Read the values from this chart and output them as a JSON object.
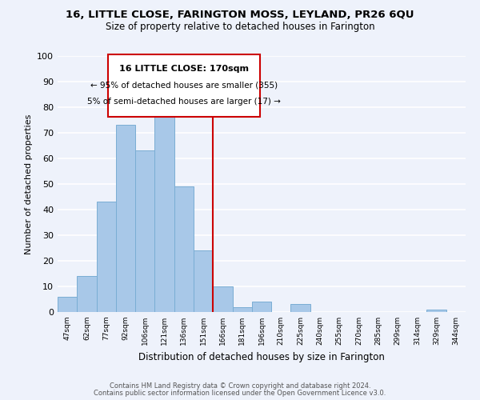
{
  "title": "16, LITTLE CLOSE, FARINGTON MOSS, LEYLAND, PR26 6QU",
  "subtitle": "Size of property relative to detached houses in Farington",
  "xlabel": "Distribution of detached houses by size in Farington",
  "ylabel": "Number of detached properties",
  "bar_color": "#a8c8e8",
  "bar_edge_color": "#7aadd4",
  "background_color": "#eef2fb",
  "grid_color": "#ffffff",
  "annotation_box_color": "#ffffff",
  "annotation_box_edge": "#cc0000",
  "vline_color": "#cc0000",
  "vline_x_index": 8,
  "annotation_title": "16 LITTLE CLOSE: 170sqm",
  "annotation_line1": "← 95% of detached houses are smaller (355)",
  "annotation_line2": "5% of semi-detached houses are larger (17) →",
  "footer_line1": "Contains HM Land Registry data © Crown copyright and database right 2024.",
  "footer_line2": "Contains public sector information licensed under the Open Government Licence v3.0.",
  "tick_labels": [
    "47sqm",
    "62sqm",
    "77sqm",
    "92sqm",
    "106sqm",
    "121sqm",
    "136sqm",
    "151sqm",
    "166sqm",
    "181sqm",
    "196sqm",
    "210sqm",
    "225sqm",
    "240sqm",
    "255sqm",
    "270sqm",
    "285sqm",
    "299sqm",
    "314sqm",
    "329sqm",
    "344sqm"
  ],
  "bar_heights": [
    6,
    14,
    43,
    73,
    63,
    82,
    49,
    24,
    10,
    2,
    4,
    0,
    3,
    0,
    0,
    0,
    0,
    0,
    0,
    1,
    0
  ],
  "ylim": [
    0,
    100
  ],
  "yticks": [
    0,
    10,
    20,
    30,
    40,
    50,
    60,
    70,
    80,
    90,
    100
  ]
}
